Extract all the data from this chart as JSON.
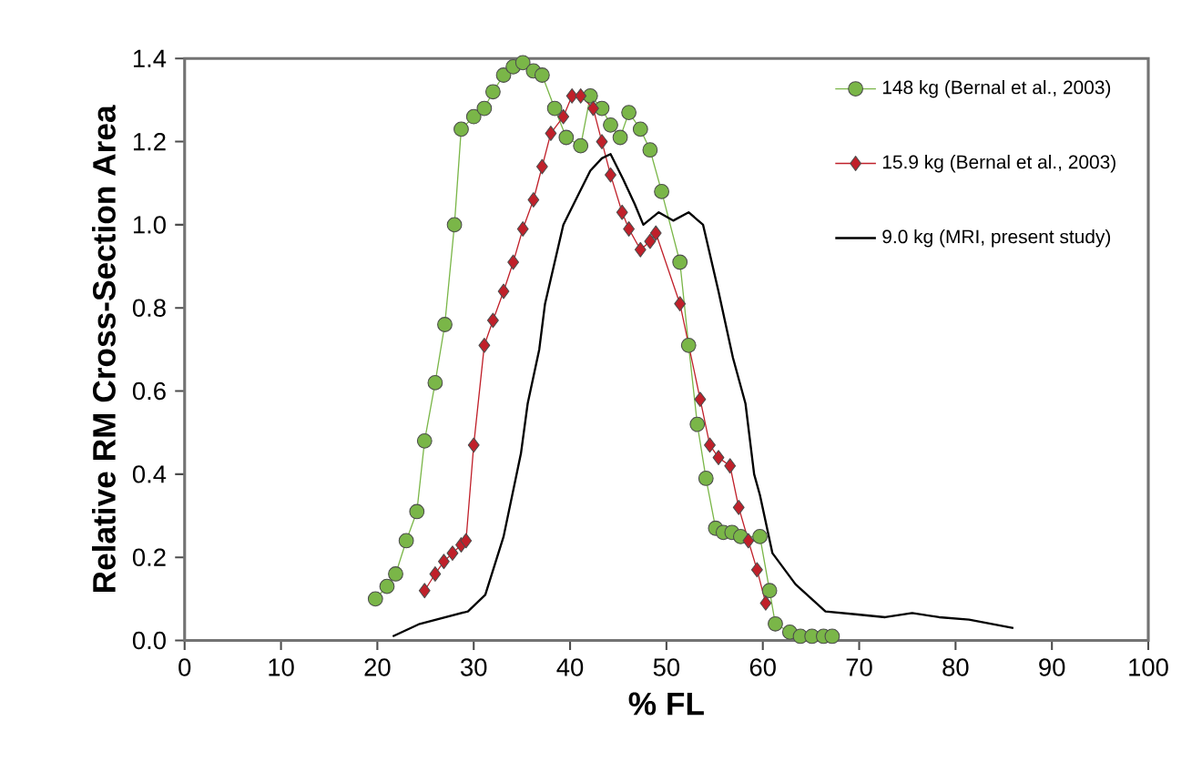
{
  "chart_data": {
    "type": "line",
    "xlabel": "% FL",
    "ylabel": "Relative RM Cross-Section Area",
    "xlim": [
      0,
      100
    ],
    "ylim": [
      0,
      1.4
    ],
    "xticks": [
      0,
      10,
      20,
      30,
      40,
      50,
      60,
      70,
      80,
      90,
      100
    ],
    "yticks": [
      {
        "value": 0,
        "label": "0.0"
      },
      {
        "value": 0.2,
        "label": "0.2"
      },
      {
        "value": 0.4,
        "label": "0.4"
      },
      {
        "value": 0.6,
        "label": "0.6"
      },
      {
        "value": 0.8,
        "label": "0.8"
      },
      {
        "value": 1.0,
        "label": "1.0"
      },
      {
        "value": 1.2,
        "label": "1.2"
      },
      {
        "value": 1.4,
        "label": "1.4"
      }
    ],
    "legend": "top right",
    "grid": false,
    "series": [
      {
        "name": "148 kg (Bernal et al., 2003)",
        "color": "#7ab648",
        "marker": "circle",
        "x": [
          19.8,
          21.0,
          21.9,
          23.0,
          24.1,
          24.9,
          26.0,
          27.0,
          28.0,
          28.7,
          30.0,
          31.1,
          32.0,
          33.1,
          34.1,
          35.1,
          36.2,
          37.1,
          38.4,
          39.6,
          41.1,
          42.1,
          43.3,
          44.2,
          45.2,
          46.1,
          47.3,
          48.3,
          49.5,
          51.4,
          52.3,
          53.2,
          54.1,
          55.1,
          55.9,
          56.8,
          57.7,
          59.7,
          60.7,
          61.3,
          62.8,
          63.9,
          65.1,
          66.3,
          67.2
        ],
        "values": [
          0.1,
          0.13,
          0.16,
          0.24,
          0.31,
          0.48,
          0.62,
          0.76,
          1.0,
          1.23,
          1.26,
          1.28,
          1.32,
          1.36,
          1.38,
          1.39,
          1.37,
          1.36,
          1.28,
          1.21,
          1.19,
          1.31,
          1.28,
          1.24,
          1.21,
          1.27,
          1.23,
          1.18,
          1.08,
          0.91,
          0.71,
          0.52,
          0.39,
          0.27,
          0.26,
          0.26,
          0.25,
          0.25,
          0.12,
          0.04,
          0.02,
          0.01,
          0.01,
          0.01,
          0.01
        ]
      },
      {
        "name": "15.9 kg (Bernal et al., 2003)",
        "color": "#c0202a",
        "marker": "diamond",
        "x": [
          24.9,
          26.0,
          26.9,
          27.8,
          28.7,
          29.2,
          30.0,
          31.1,
          32.0,
          33.1,
          34.1,
          35.1,
          36.2,
          37.1,
          38.0,
          39.3,
          40.2,
          41.1,
          42.4,
          43.3,
          44.2,
          45.4,
          46.1,
          47.3,
          48.3,
          48.9,
          51.4,
          53.5,
          54.5,
          55.4,
          56.6,
          57.5,
          58.5,
          59.4,
          60.3
        ],
        "values": [
          0.12,
          0.16,
          0.19,
          0.21,
          0.23,
          0.24,
          0.47,
          0.71,
          0.77,
          0.84,
          0.91,
          0.99,
          1.06,
          1.14,
          1.22,
          1.26,
          1.31,
          1.31,
          1.28,
          1.2,
          1.12,
          1.03,
          0.99,
          0.94,
          0.96,
          0.98,
          0.81,
          0.58,
          0.47,
          0.44,
          0.42,
          0.32,
          0.24,
          0.17,
          0.09
        ]
      },
      {
        "name": "9.0 kg (MRI, present study)",
        "color": "#000000",
        "marker": "none",
        "x": [
          21.6,
          24.4,
          29.4,
          31.2,
          33.1,
          34.9,
          35.6,
          36.8,
          37.4,
          39.3,
          40.8,
          42.1,
          43.3,
          44.2,
          45.5,
          46.7,
          47.6,
          49.2,
          50.7,
          52.3,
          53.8,
          55.4,
          56.9,
          58.2,
          59.1,
          59.7,
          61.0,
          63.4,
          66.5,
          69.6,
          72.7,
          75.5,
          78.3,
          81.4,
          86.0
        ],
        "values": [
          0.01,
          0.04,
          0.07,
          0.11,
          0.25,
          0.45,
          0.57,
          0.7,
          0.81,
          1.0,
          1.07,
          1.13,
          1.16,
          1.17,
          1.11,
          1.05,
          1.0,
          1.03,
          1.01,
          1.03,
          1.0,
          0.84,
          0.68,
          0.57,
          0.4,
          0.35,
          0.21,
          0.135,
          0.07,
          0.063,
          0.056,
          0.066,
          0.056,
          0.05,
          0.03
        ]
      }
    ]
  }
}
